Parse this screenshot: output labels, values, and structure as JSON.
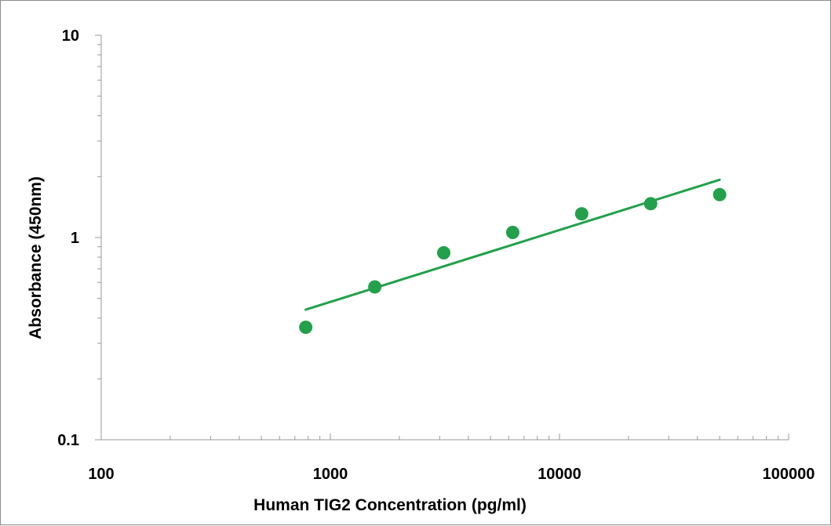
{
  "chart_data": {
    "type": "scatter",
    "title": "",
    "xlabel": "Human TIG2 Concentration (pg/ml)",
    "ylabel": "Absorbance (450nm)",
    "xscale": "log",
    "yscale": "log",
    "xlim": [
      100,
      100000
    ],
    "ylim": [
      0.1,
      10
    ],
    "x_ticks": [
      "100",
      "1000",
      "10000",
      "100000"
    ],
    "y_ticks": [
      "0.1",
      "1",
      "10"
    ],
    "grid": false,
    "legend": "none",
    "series": [
      {
        "marker": "circle",
        "color": "#22a04b",
        "points": [
          {
            "x": 781,
            "y": 0.36
          },
          {
            "x": 1563,
            "y": 0.57
          },
          {
            "x": 3125,
            "y": 0.84
          },
          {
            "x": 6250,
            "y": 1.06
          },
          {
            "x": 12500,
            "y": 1.31
          },
          {
            "x": 25000,
            "y": 1.47
          },
          {
            "x": 50000,
            "y": 1.63
          }
        ]
      }
    ],
    "fit_line": {
      "color": "#22a04b",
      "points": [
        {
          "x": 781,
          "y": 0.44
        },
        {
          "x": 50000,
          "y": 1.93
        }
      ]
    }
  }
}
